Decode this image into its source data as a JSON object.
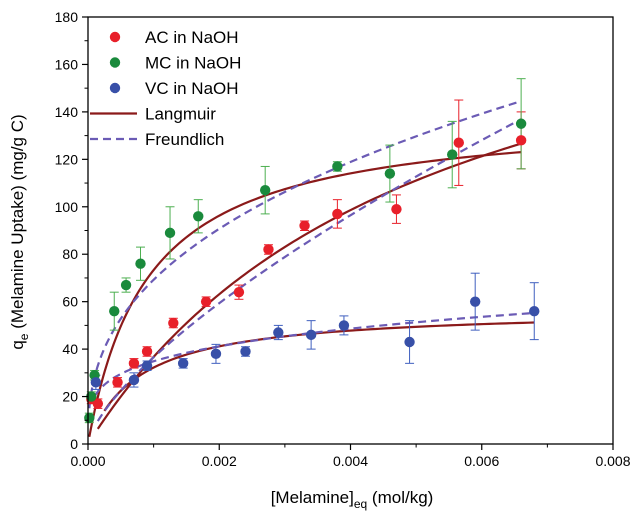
{
  "chart_data": {
    "type": "scatter",
    "title": "",
    "xlabel": {
      "main": "[Melamine]",
      "sub": "eq",
      "rest": " (mol/kg)"
    },
    "ylabel": {
      "main": "q",
      "sub": "e",
      "rest": " (Melamine Uptake) (mg/g C)"
    },
    "xlim": [
      0,
      0.008
    ],
    "ylim": [
      0,
      180
    ],
    "xticks": [
      0,
      0.002,
      0.004,
      0.006,
      0.008
    ],
    "xtick_labels": [
      "0.000",
      "0.002",
      "0.004",
      "0.006",
      "0.008"
    ],
    "yticks": [
      0,
      20,
      40,
      60,
      80,
      100,
      120,
      140,
      160,
      180
    ],
    "ytick_labels": [
      "0",
      "20",
      "40",
      "60",
      "80",
      "100",
      "120",
      "140",
      "160",
      "180"
    ],
    "grid": false,
    "legend_position": "top-left",
    "series": [
      {
        "name": "AC in NaOH",
        "color": "#e8202a",
        "errorbar_color": "#e8202a",
        "points": [
          {
            "x": 5e-05,
            "y": 19,
            "err": 2
          },
          {
            "x": 0.00015,
            "y": 17,
            "err": 2
          },
          {
            "x": 0.00045,
            "y": 26,
            "err": 2
          },
          {
            "x": 0.0007,
            "y": 34,
            "err": 2
          },
          {
            "x": 0.0009,
            "y": 39,
            "err": 2
          },
          {
            "x": 0.0013,
            "y": 51,
            "err": 2
          },
          {
            "x": 0.0018,
            "y": 60,
            "err": 2
          },
          {
            "x": 0.0023,
            "y": 64,
            "err": 3
          },
          {
            "x": 0.00275,
            "y": 82,
            "err": 2
          },
          {
            "x": 0.0033,
            "y": 92,
            "err": 2
          },
          {
            "x": 0.0038,
            "y": 97,
            "err": 6
          },
          {
            "x": 0.0047,
            "y": 99,
            "err": 6
          },
          {
            "x": 0.00565,
            "y": 127,
            "err": 18
          },
          {
            "x": 0.0066,
            "y": 128,
            "err": 12
          }
        ]
      },
      {
        "name": "MC in NaOH",
        "color": "#1a8a3c",
        "errorbar_color": "#4caf50",
        "points": [
          {
            "x": 2e-05,
            "y": 11,
            "err": 2
          },
          {
            "x": 5e-05,
            "y": 20,
            "err": 2
          },
          {
            "x": 0.0001,
            "y": 29,
            "err": 2
          },
          {
            "x": 0.0004,
            "y": 56,
            "err": 8
          },
          {
            "x": 0.00058,
            "y": 67,
            "err": 3
          },
          {
            "x": 0.0008,
            "y": 76,
            "err": 7
          },
          {
            "x": 0.00125,
            "y": 89,
            "err": 11
          },
          {
            "x": 0.00168,
            "y": 96,
            "err": 7
          },
          {
            "x": 0.0027,
            "y": 107,
            "err": 10
          },
          {
            "x": 0.0038,
            "y": 117,
            "err": 2
          },
          {
            "x": 0.0046,
            "y": 114,
            "err": 12
          },
          {
            "x": 0.00555,
            "y": 122,
            "err": 14
          },
          {
            "x": 0.0066,
            "y": 135,
            "err": 19
          }
        ]
      },
      {
        "name": "VC in NaOH",
        "color": "#3850a8",
        "errorbar_color": "#3f5fbf",
        "points": [
          {
            "x": 0.00012,
            "y": 26,
            "err": 3
          },
          {
            "x": 0.0007,
            "y": 27,
            "err": 3
          },
          {
            "x": 0.0009,
            "y": 33,
            "err": 2
          },
          {
            "x": 0.00145,
            "y": 34,
            "err": 2
          },
          {
            "x": 0.00195,
            "y": 38,
            "err": 4
          },
          {
            "x": 0.0024,
            "y": 39,
            "err": 2
          },
          {
            "x": 0.0029,
            "y": 47,
            "err": 3
          },
          {
            "x": 0.0034,
            "y": 46,
            "err": 6
          },
          {
            "x": 0.0039,
            "y": 50,
            "err": 4
          },
          {
            "x": 0.0049,
            "y": 43,
            "err": 9
          },
          {
            "x": 0.0059,
            "y": 60,
            "err": 12
          },
          {
            "x": 0.0068,
            "y": 56,
            "err": 12
          }
        ]
      }
    ],
    "fit_lines": [
      {
        "name": "Langmuir",
        "style": "solid",
        "color": "#8b1a1a"
      },
      {
        "name": "Freundlich",
        "style": "dashed",
        "color": "#6b5bb5"
      }
    ],
    "fit_curves": [
      {
        "model": "Langmuir",
        "x_start": 0.00015,
        "x_end": 0.0066,
        "qmax": 225,
        "K": 195
      },
      {
        "model": "Langmuir",
        "x_start": 2e-05,
        "x_end": 0.0066,
        "qmax": 140,
        "K": 1100
      },
      {
        "model": "Langmuir",
        "x_start": 0.00025,
        "x_end": 0.0068,
        "qmax": 57,
        "K": 1300
      },
      {
        "model": "Freundlich",
        "x_start": 0.00015,
        "x_end": 0.0066,
        "Kf": 4600,
        "n": 0.7
      },
      {
        "model": "Freundlich",
        "x_start": 2e-05,
        "x_end": 0.0066,
        "Kf": 1024,
        "n": 0.39
      },
      {
        "model": "Freundlich",
        "x_start": 0.0001,
        "x_end": 0.0068,
        "Kf": 183,
        "n": 0.24
      }
    ]
  }
}
